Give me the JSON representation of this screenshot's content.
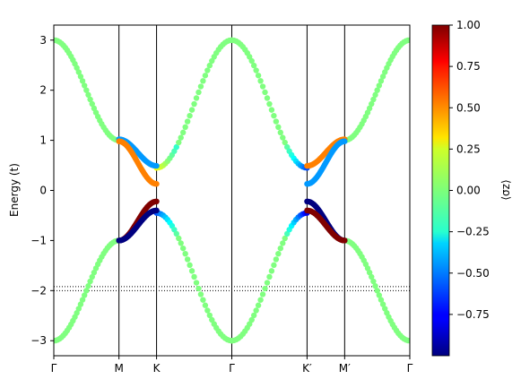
{
  "chart_data": {
    "type": "scatter",
    "title": "",
    "xlabel": "",
    "ylabel": "Energy (t)",
    "ylim": [
      -3.3,
      3.3
    ],
    "x_ticks": [
      {
        "label": "Γ",
        "x": 0
      },
      {
        "label": "M",
        "x": 1
      },
      {
        "label": "K",
        "x": 1.577
      },
      {
        "label": "Γ",
        "x": 2.732
      },
      {
        "label": "K′",
        "x": 3.887
      },
      {
        "label": "M′",
        "x": 4.464
      },
      {
        "label": "Γ",
        "x": 5.464
      }
    ],
    "y_ticks": [
      -3,
      -2,
      -1,
      0,
      1,
      2,
      3
    ],
    "reference_lines": [
      -1.92,
      -2.0
    ],
    "colorbar": {
      "label": "⟨σz⟩",
      "colormap": "jet",
      "range": [
        -1.0,
        1.0
      ],
      "ticks": [
        "1.00",
        "0.75",
        "0.50",
        "0.25",
        "0.00",
        "−0.25",
        "−0.50",
        "−0.75"
      ],
      "tick_values": [
        1.0,
        0.75,
        0.5,
        0.25,
        0.0,
        -0.25,
        -0.5,
        -0.75
      ]
    },
    "series": [
      {
        "values_desc": "upper outer band",
        "x": [
          0,
          1,
          1.577,
          2.732,
          3.887,
          4.464,
          5.464
        ],
        "y": [
          3.0,
          1.0,
          0.45,
          3.0,
          0.45,
          1.0,
          3.0
        ],
        "color_value": 0.0
      },
      {
        "values_desc": "lower outer band",
        "x": [
          0,
          1,
          1.577,
          2.732,
          3.887,
          4.464,
          5.464
        ],
        "y": [
          -3.0,
          -1.0,
          -0.45,
          -3.0,
          -0.45,
          -1.0,
          -3.0
        ],
        "color_value": 0.0
      },
      {
        "x": [
          1,
          1.577
        ],
        "y": [
          1.02,
          0.49
        ],
        "color_value": -0.45
      },
      {
        "x": [
          1,
          1.577
        ],
        "y": [
          0.98,
          0.13
        ],
        "color_value": 0.5
      },
      {
        "x": [
          1,
          1.577
        ],
        "y": [
          -1.0,
          -0.22
        ],
        "color_value": 1.0
      },
      {
        "x": [
          1,
          1.577
        ],
        "y": [
          -1.0,
          -0.4
        ],
        "color_value": -1.0
      },
      {
        "x": [
          3.887,
          4.464
        ],
        "y": [
          0.49,
          1.02
        ],
        "color_value": 0.5
      },
      {
        "x": [
          3.887,
          4.464
        ],
        "y": [
          0.13,
          0.98
        ],
        "color_value": -0.45
      },
      {
        "x": [
          3.887,
          4.464
        ],
        "y": [
          -0.22,
          -1.0
        ],
        "color_value": -1.0
      },
      {
        "x": [
          3.887,
          4.464
        ],
        "y": [
          -0.4,
          -1.0
        ],
        "color_value": 1.0
      }
    ]
  }
}
